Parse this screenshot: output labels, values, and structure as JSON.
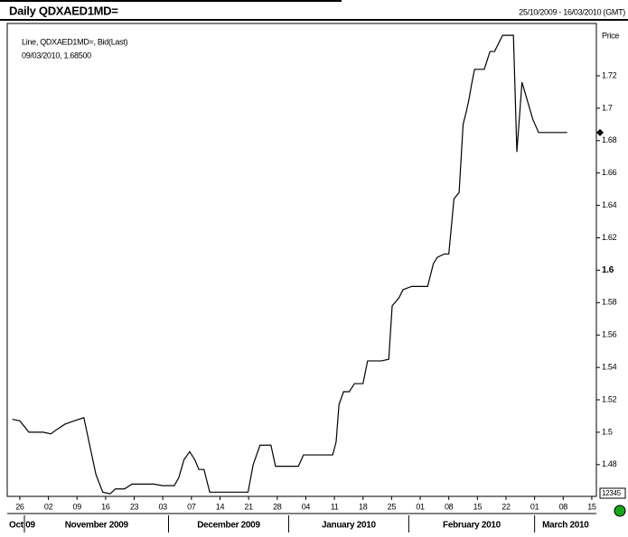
{
  "chart_data": {
    "type": "line",
    "title": "Daily QDXAED1MD=",
    "date_range": "25/10/2009 - 16/03/2010 (GMT)",
    "legend_line": "Line, QDXAED1MD=, Bid(Last)",
    "legend_last": "09/03/2010, 1.68500",
    "y_axis_label": "Price",
    "corner_box": "12345",
    "color": "#000000",
    "series": [
      {
        "name": "QDXAED1MD=",
        "x": [
          -1.3,
          0,
          1.6,
          4.1,
          5.4,
          6.6,
          7.9,
          9.5,
          11.2,
          11.8,
          13.3,
          14.5,
          15.8,
          16.7,
          18.3,
          19.6,
          23.4,
          25,
          27,
          27.8,
          28.7,
          29.7,
          30.6,
          31.3,
          32.2,
          33.2,
          39.9,
          40.8,
          42,
          43.9,
          44.7,
          48.7,
          49.6,
          54.7,
          55.3,
          55.8,
          56.6,
          57.6,
          58.5,
          60,
          60.8,
          63.2,
          64.5,
          65.1,
          66.3,
          67,
          68.5,
          71.3,
          72.3,
          73,
          74.2,
          75,
          75.9,
          76.8,
          77.5,
          78,
          78.5,
          79,
          79.5,
          81.2,
          82.2,
          83,
          84.4,
          86.3,
          86.9,
          87.8,
          89.7,
          90.7,
          95.7
        ],
        "values": [
          1.508,
          1.507,
          1.5,
          1.5,
          1.499,
          1.502,
          1.505,
          1.507,
          1.509,
          1.499,
          1.474,
          1.463,
          1.462,
          1.465,
          1.465,
          1.468,
          1.468,
          1.467,
          1.467,
          1.472,
          1.483,
          1.488,
          1.483,
          1.477,
          1.477,
          1.463,
          1.463,
          1.48,
          1.492,
          1.492,
          1.479,
          1.479,
          1.486,
          1.486,
          1.494,
          1.517,
          1.525,
          1.525,
          1.53,
          1.53,
          1.544,
          1.544,
          1.545,
          1.578,
          1.583,
          1.588,
          1.59,
          1.59,
          1.604,
          1.608,
          1.61,
          1.61,
          1.644,
          1.648,
          1.69,
          1.697,
          1.705,
          1.715,
          1.724,
          1.724,
          1.735,
          1.735,
          1.745,
          1.745,
          1.673,
          1.716,
          1.693,
          1.685,
          1.685
        ]
      }
    ],
    "last_value": 1.685,
    "xlim": [
      -2.2,
      100.8
    ],
    "xticks": [
      {
        "value": 0,
        "label": "26"
      },
      {
        "value": 5,
        "label": "02"
      },
      {
        "value": 10,
        "label": "09"
      },
      {
        "value": 15,
        "label": "16"
      },
      {
        "value": 20,
        "label": "23"
      },
      {
        "value": 25,
        "label": "03"
      },
      {
        "value": 30,
        "label": "07"
      },
      {
        "value": 35,
        "label": "14"
      },
      {
        "value": 40,
        "label": "21"
      },
      {
        "value": 45,
        "label": "28"
      },
      {
        "value": 50,
        "label": "04"
      },
      {
        "value": 55,
        "label": "11"
      },
      {
        "value": 60,
        "label": "18"
      },
      {
        "value": 65,
        "label": "25"
      },
      {
        "value": 70,
        "label": "01"
      },
      {
        "value": 75,
        "label": "08"
      },
      {
        "value": 80,
        "label": "15"
      },
      {
        "value": 85,
        "label": "22"
      },
      {
        "value": 90,
        "label": "01"
      },
      {
        "value": 95,
        "label": "08"
      },
      {
        "value": 100,
        "label": "15"
      }
    ],
    "months": [
      "Oct 09",
      "November 2009",
      "December 2009",
      "January 2010",
      "February 2010",
      "March 2010"
    ],
    "month_bounds": [
      0.8,
      26,
      47,
      68,
      90
    ],
    "ylim": [
      1.4604,
      1.7523
    ],
    "yticks": [
      1.48,
      1.5,
      1.52,
      1.54,
      1.56,
      1.58,
      1.6,
      1.62,
      1.64,
      1.66,
      1.68,
      1.7,
      1.72
    ],
    "emphasized_tick": 1.6
  }
}
